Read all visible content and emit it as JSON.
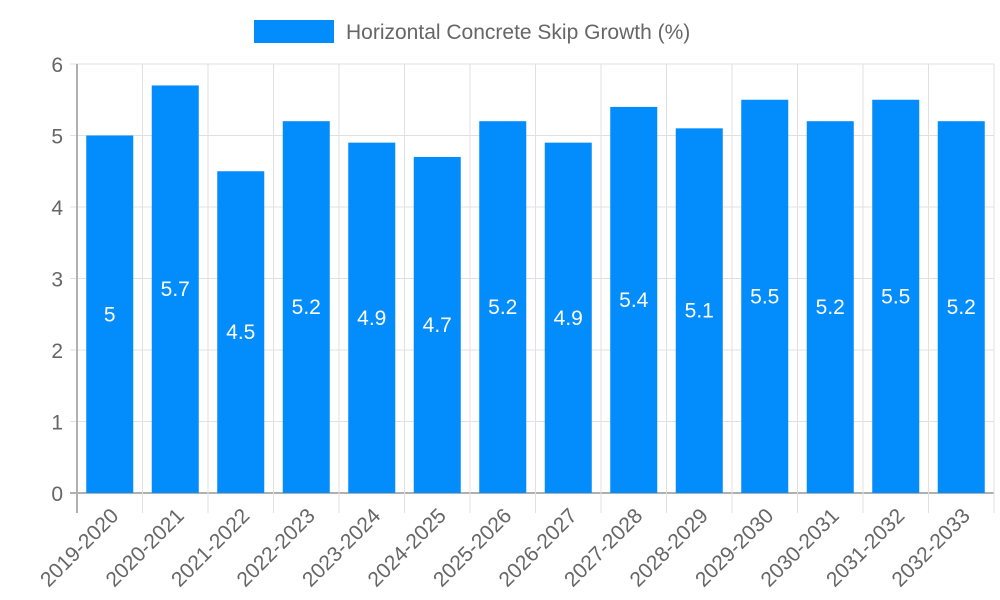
{
  "chart_data": {
    "type": "bar",
    "title": "",
    "legend": {
      "label": "Horizontal Concrete Skip Growth (%)",
      "placement": "top-center"
    },
    "categories": [
      "2019-2020",
      "2020-2021",
      "2021-2022",
      "2022-2023",
      "2023-2024",
      "2024-2025",
      "2025-2026",
      "2026-2027",
      "2027-2028",
      "2028-2029",
      "2029-2030",
      "2030-2031",
      "2031-2032",
      "2032-2033"
    ],
    "series": [
      {
        "name": "Horizontal Concrete Skip Growth (%)",
        "values": [
          5,
          5.7,
          4.5,
          5.2,
          4.9,
          4.7,
          5.2,
          4.9,
          5.4,
          5.1,
          5.5,
          5.2,
          5.5,
          5.2
        ]
      }
    ],
    "y_ticks": [
      "0",
      "1",
      "2",
      "3",
      "4",
      "5",
      "6"
    ],
    "ylim": [
      0,
      6
    ],
    "xlabel": "",
    "ylabel": "",
    "grid": true,
    "colors": {
      "bar": "#038cfc",
      "grid": "#e0e0e0",
      "axis": "#b0b0b0",
      "text": "#666666",
      "label": "#ffffff"
    }
  }
}
